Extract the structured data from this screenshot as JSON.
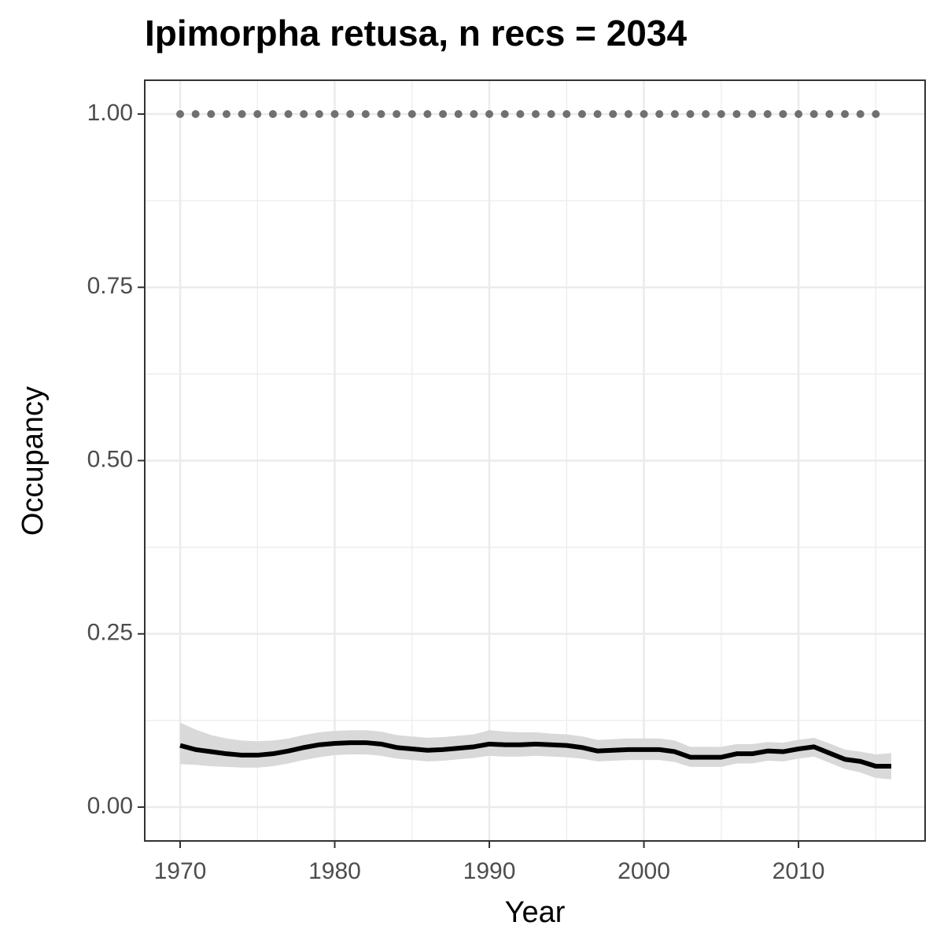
{
  "chart_data": {
    "type": "line",
    "title": "Ipimorpha retusa, n recs = 2034",
    "x_label": "Year",
    "y_label": "Occupancy",
    "xlim": [
      1967.71,
      2018.19
    ],
    "ylim": [
      -0.0488,
      1.0488
    ],
    "xticks": [
      1970,
      1980,
      1990,
      2000,
      2010
    ],
    "xminorticks": [
      1975,
      1985,
      1995,
      2005,
      2015
    ],
    "yticks": [
      {
        "value": 0,
        "label": "0.00"
      },
      {
        "value": 0.25,
        "label": "0.25"
      },
      {
        "value": 0.5,
        "label": "0.50"
      },
      {
        "value": 0.75,
        "label": "0.75"
      },
      {
        "value": 1,
        "label": "1.00"
      }
    ],
    "yminorticks": [
      0.125,
      0.375,
      0.625,
      0.875
    ],
    "grid": true,
    "series": [
      {
        "type": "line",
        "color": "#000000",
        "band_color": "#d9d9d9",
        "x": [
          1970,
          1971,
          1972,
          1973,
          1974,
          1975,
          1976,
          1977,
          1978,
          1979,
          1980,
          1981,
          1982,
          1983,
          1984,
          1985,
          1986,
          1987,
          1988,
          1989,
          1990,
          1991,
          1992,
          1993,
          1994,
          1995,
          1996,
          1997,
          1998,
          1999,
          2000,
          2001,
          2002,
          2003,
          2004,
          2005,
          2006,
          2007,
          2008,
          2009,
          2010,
          2011,
          2012,
          2013,
          2014,
          2015,
          2016
        ],
        "values": [
          0.089,
          0.083,
          0.08,
          0.077,
          0.075,
          0.075,
          0.077,
          0.081,
          0.086,
          0.09,
          0.092,
          0.093,
          0.093,
          0.091,
          0.086,
          0.084,
          0.082,
          0.083,
          0.085,
          0.087,
          0.091,
          0.09,
          0.09,
          0.091,
          0.09,
          0.089,
          0.086,
          0.081,
          0.082,
          0.083,
          0.083,
          0.083,
          0.08,
          0.072,
          0.072,
          0.072,
          0.077,
          0.077,
          0.081,
          0.08,
          0.084,
          0.087,
          0.078,
          0.069,
          0.066,
          0.059,
          0.059
        ],
        "upper": [
          0.122,
          0.112,
          0.104,
          0.099,
          0.096,
          0.095,
          0.096,
          0.099,
          0.104,
          0.108,
          0.11,
          0.111,
          0.111,
          0.109,
          0.104,
          0.102,
          0.1,
          0.101,
          0.103,
          0.105,
          0.111,
          0.109,
          0.108,
          0.108,
          0.106,
          0.105,
          0.102,
          0.097,
          0.098,
          0.099,
          0.099,
          0.099,
          0.096,
          0.087,
          0.087,
          0.087,
          0.091,
          0.091,
          0.094,
          0.093,
          0.097,
          0.1,
          0.092,
          0.083,
          0.08,
          0.076,
          0.078
        ],
        "lower": [
          0.062,
          0.061,
          0.059,
          0.058,
          0.057,
          0.057,
          0.059,
          0.063,
          0.068,
          0.072,
          0.075,
          0.076,
          0.076,
          0.074,
          0.07,
          0.068,
          0.066,
          0.067,
          0.069,
          0.071,
          0.074,
          0.073,
          0.073,
          0.074,
          0.073,
          0.072,
          0.07,
          0.066,
          0.067,
          0.068,
          0.068,
          0.068,
          0.065,
          0.058,
          0.058,
          0.058,
          0.063,
          0.063,
          0.067,
          0.066,
          0.07,
          0.073,
          0.064,
          0.055,
          0.05,
          0.042,
          0.04
        ]
      },
      {
        "type": "scatter",
        "color": "#707070",
        "x": [
          1970,
          1971,
          1972,
          1973,
          1974,
          1975,
          1976,
          1977,
          1978,
          1979,
          1980,
          1981,
          1982,
          1983,
          1984,
          1985,
          1986,
          1987,
          1988,
          1989,
          1990,
          1991,
          1992,
          1993,
          1994,
          1995,
          1996,
          1997,
          1998,
          1999,
          2000,
          2001,
          2002,
          2003,
          2004,
          2005,
          2006,
          2007,
          2008,
          2009,
          2010,
          2011,
          2012,
          2013,
          2014,
          2015
        ],
        "values": [
          1,
          1,
          1,
          1,
          1,
          1,
          1,
          1,
          1,
          1,
          1,
          1,
          1,
          1,
          1,
          1,
          1,
          1,
          1,
          1,
          1,
          1,
          1,
          1,
          1,
          1,
          1,
          1,
          1,
          1,
          1,
          1,
          1,
          1,
          1,
          1,
          1,
          1,
          1,
          1,
          1,
          1,
          1,
          1,
          1,
          1
        ]
      }
    ]
  }
}
